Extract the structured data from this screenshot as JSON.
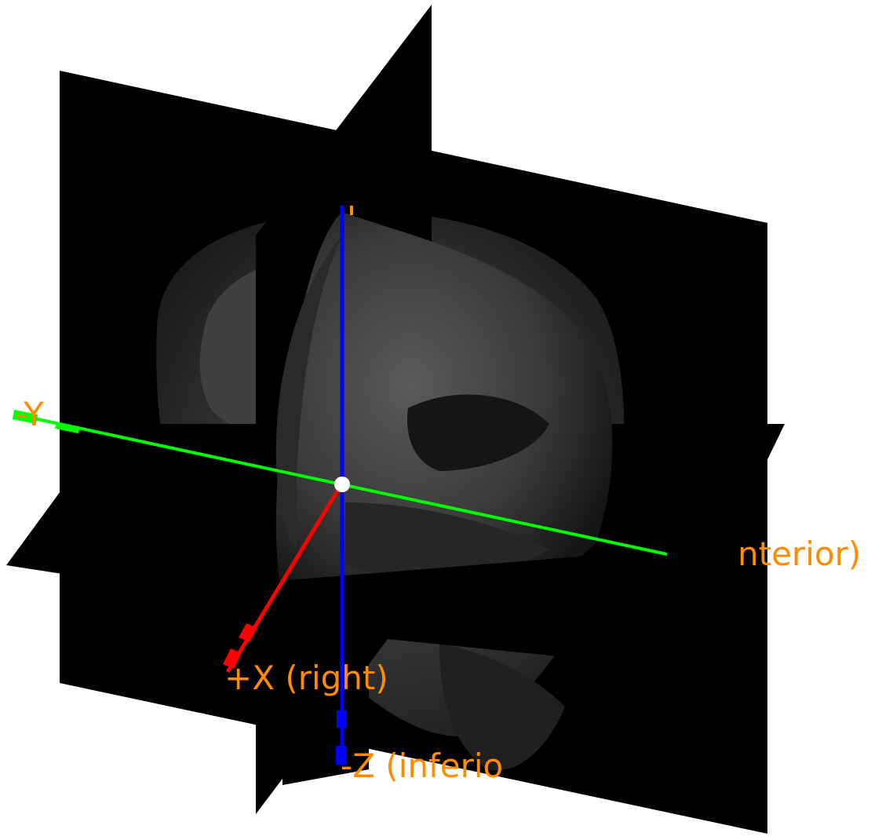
{
  "colors": {
    "background": "#ffffff",
    "plane": "#000000",
    "x_axis": "#ff0000",
    "y_axis": "#00ff00",
    "z_axis": "#0000ff",
    "label": "#ff8c00",
    "origin": "#ffffff"
  },
  "labels": {
    "x_axis": "+X (right)",
    "y_axis": "-Y",
    "y_axis_far": "nterior)",
    "z_axis": "-Z (inferio"
  }
}
